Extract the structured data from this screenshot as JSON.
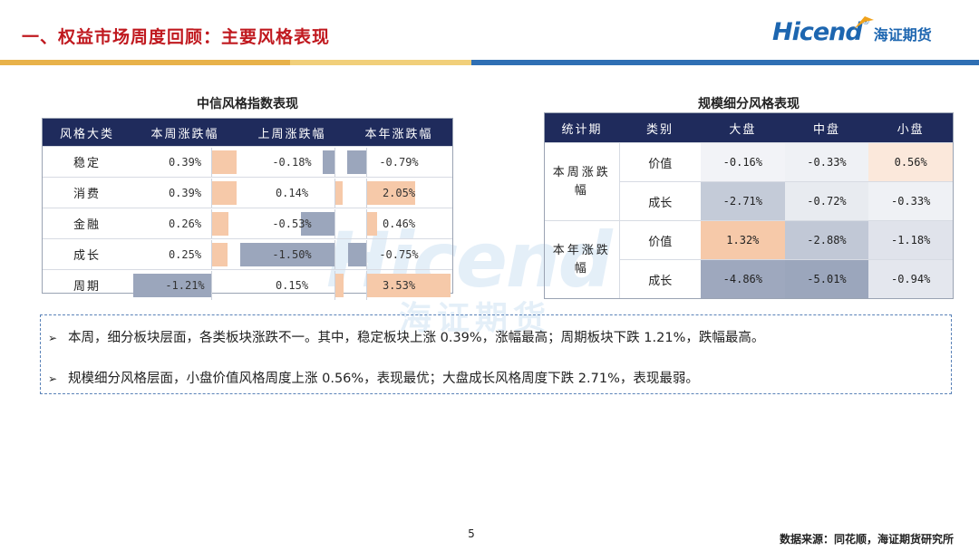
{
  "header": {
    "title": "一、权益市场周度回顾：主要风格表现",
    "logo_text": "Hicend",
    "logo_reg": "®",
    "logo_cn": "海证期货"
  },
  "watermark": {
    "text": "Hicend",
    "text_cn": "海证期货"
  },
  "style_table": {
    "title": "中信风格指数表现",
    "columns": [
      "风格大类",
      "本周涨跌幅",
      "上周涨跌幅",
      "本年涨跌幅"
    ],
    "rows": [
      {
        "category": "稳定",
        "this_week": "0.39%",
        "last_week": "-0.18%",
        "ytd": "-0.79%"
      },
      {
        "category": "消费",
        "this_week": "0.39%",
        "last_week": "0.14%",
        "ytd": "2.05%"
      },
      {
        "category": "金融",
        "this_week": "0.26%",
        "last_week": "-0.53%",
        "ytd": "0.46%"
      },
      {
        "category": "成长",
        "this_week": "0.25%",
        "last_week": "-1.50%",
        "ytd": "-0.75%"
      },
      {
        "category": "周期",
        "this_week": "-1.21%",
        "last_week": "0.15%",
        "ytd": "3.53%"
      }
    ],
    "numeric": {
      "this_week": [
        0.39,
        0.39,
        0.26,
        0.25,
        -1.21
      ],
      "last_week": [
        -0.18,
        0.14,
        -0.53,
        -1.5,
        0.15
      ],
      "ytd": [
        -0.79,
        2.05,
        0.46,
        -0.75,
        3.53
      ]
    },
    "colors": {
      "positive": "#f6c9a9",
      "negative": "#9ba6bc",
      "header": "#1f2b5c"
    }
  },
  "size_table": {
    "title": "规模细分风格表现",
    "columns": [
      "统计期",
      "类别",
      "大盘",
      "中盘",
      "小盘"
    ],
    "groups": [
      {
        "period": "本周涨跌幅",
        "rows": [
          {
            "type": "价值",
            "large": "-0.16%",
            "mid": "-0.33%",
            "small": "0.56%"
          },
          {
            "type": "成长",
            "large": "-2.71%",
            "mid": "-0.72%",
            "small": "-0.33%"
          }
        ]
      },
      {
        "period": "本年涨跌幅",
        "rows": [
          {
            "type": "价值",
            "large": "1.32%",
            "mid": "-2.88%",
            "small": "-1.18%"
          },
          {
            "type": "成长",
            "large": "-4.86%",
            "mid": "-5.01%",
            "small": "-0.94%"
          }
        ]
      }
    ]
  },
  "summary": {
    "bullet_1": "本周，细分板块层面，各类板块涨跌不一。其中，稳定板块上涨 0.39%，涨幅最高；周期板块下跌 1.21%，跌幅最高。",
    "bullet_2": "规模细分风格层面，小盘价值风格周度上涨 0.56%，表现最优；大盘成长风格周度下跌  2.71%，表现最弱。"
  },
  "footer": {
    "page_number": "5",
    "source": "数据来源：同花顺，海证期货研究所"
  }
}
